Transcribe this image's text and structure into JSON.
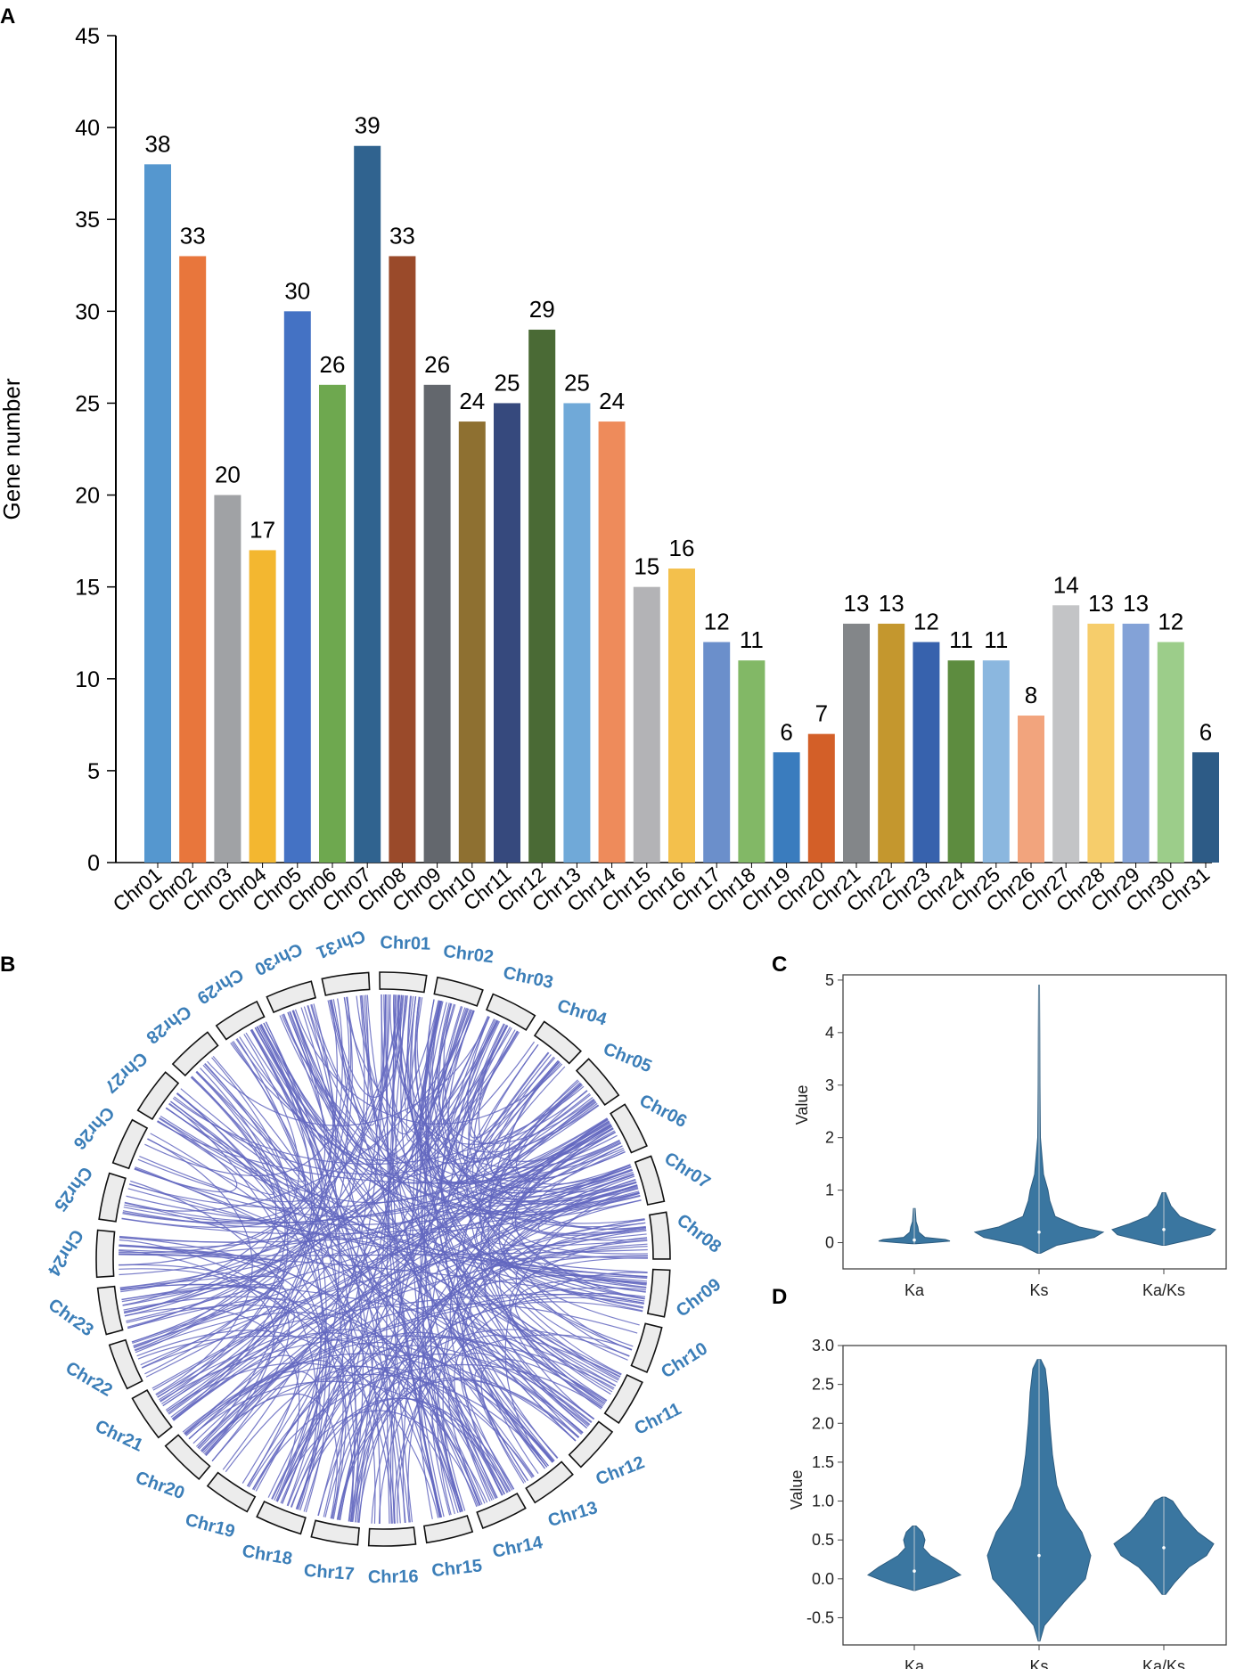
{
  "chart_data": [
    {
      "panel": "A",
      "type": "bar",
      "ylabel": "Gene number",
      "xlabel": "",
      "ylim": [
        0,
        45
      ],
      "yticks": [
        "0",
        "5",
        "10",
        "15",
        "20",
        "25",
        "30",
        "35",
        "40",
        "45"
      ],
      "categories": [
        "Chr01",
        "Chr02",
        "Chr03",
        "Chr04",
        "Chr05",
        "Chr06",
        "Chr07",
        "Chr08",
        "Chr09",
        "Chr10",
        "Chr11",
        "Chr12",
        "Chr13",
        "Chr14",
        "Chr15",
        "Chr16",
        "Chr17",
        "Chr18",
        "Chr19",
        "Chr20",
        "Chr21",
        "Chr22",
        "Chr23",
        "Chr24",
        "Chr25",
        "Chr26",
        "Chr27",
        "Chr28",
        "Chr29",
        "Chr30",
        "Chr31"
      ],
      "values": [
        38,
        33,
        20,
        17,
        30,
        26,
        39,
        33,
        26,
        24,
        25,
        29,
        25,
        24,
        15,
        16,
        12,
        11,
        6,
        7,
        13,
        13,
        12,
        11,
        11,
        8,
        14,
        13,
        13,
        12,
        6
      ],
      "colors": [
        "#5597cf",
        "#e8763c",
        "#a0a2a5",
        "#f3b730",
        "#4472c4",
        "#6ea84f",
        "#30638f",
        "#9a4a2a",
        "#63676d",
        "#8e7031",
        "#36497d",
        "#4a6a35",
        "#70a9d8",
        "#ee8b5b",
        "#b3b3b6",
        "#f3c04c",
        "#6b8fcb",
        "#82b866",
        "#3a7cbe",
        "#d35f28",
        "#838689",
        "#c4972e",
        "#3762ad",
        "#5d8c3f",
        "#8bb7df",
        "#f2a47d",
        "#c3c4c6",
        "#f6cd6b",
        "#83a2d7",
        "#9ccd8a",
        "#2d5b86"
      ]
    },
    {
      "panel": "B",
      "type": "chord",
      "chromosomes": [
        "Chr01",
        "Chr02",
        "Chr03",
        "Chr04",
        "Chr05",
        "Chr06",
        "Chr07",
        "Chr08",
        "Chr09",
        "Chr10",
        "Chr11",
        "Chr12",
        "Chr13",
        "Chr14",
        "Chr15",
        "Chr16",
        "Chr17",
        "Chr18",
        "Chr19",
        "Chr20",
        "Chr21",
        "Chr22",
        "Chr23",
        "Chr24",
        "Chr25",
        "Chr26",
        "Chr27",
        "Chr28",
        "Chr29",
        "Chr30",
        "Chr31"
      ],
      "link_color": "#6367c0",
      "label_color": "#3b7eb8"
    },
    {
      "panel": "C",
      "type": "violin",
      "ylabel": "Value",
      "categories": [
        "Ka",
        "Ks",
        "Ka/Ks"
      ],
      "ylim": [
        -0.5,
        5.1
      ],
      "yticks": [
        "0",
        "1",
        "2",
        "3",
        "4",
        "5"
      ],
      "series": [
        {
          "name": "Ka",
          "min": -0.02,
          "max": 0.65,
          "median": 0.05
        },
        {
          "name": "Ks",
          "min": -0.2,
          "max": 4.9,
          "median": 0.2
        },
        {
          "name": "Ka/Ks",
          "min": -0.05,
          "max": 0.95,
          "median": 0.25
        }
      ],
      "color": "#3a76a0"
    },
    {
      "panel": "D",
      "type": "violin",
      "ylabel": "Value",
      "categories": [
        "Ka",
        "Ks",
        "Ka/Ks"
      ],
      "ylim": [
        -0.85,
        3.0
      ],
      "yticks": [
        "-0.5",
        "0.0",
        "0.5",
        "1.0",
        "1.5",
        "2.0",
        "2.5",
        "3.0"
      ],
      "series": [
        {
          "name": "Ka",
          "min": -0.15,
          "max": 0.68,
          "median": 0.1
        },
        {
          "name": "Ks",
          "min": -0.8,
          "max": 2.82,
          "median": 0.3
        },
        {
          "name": "Ka/Ks",
          "min": -0.2,
          "max": 1.05,
          "median": 0.4
        }
      ],
      "color": "#3a76a0"
    }
  ]
}
